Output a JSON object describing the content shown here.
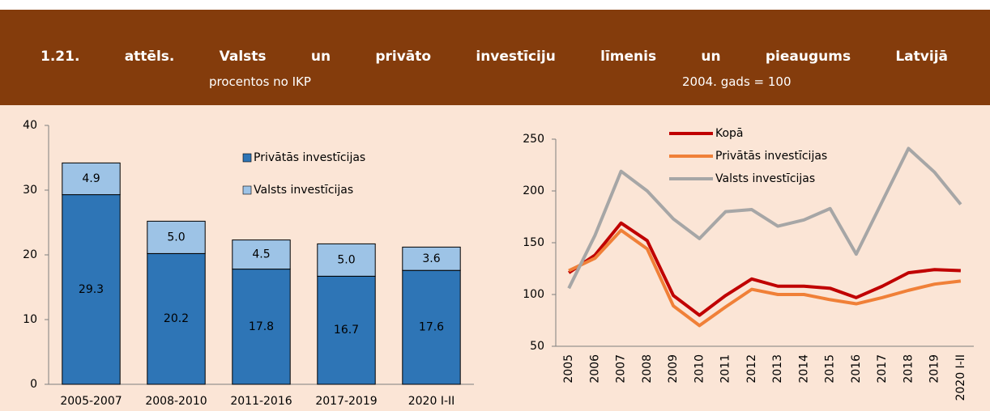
{
  "title": "1.21. attēls. Valsts un privāto investīciju līmenis un pieaugums Latvijā",
  "chart_data": [
    {
      "type": "bar",
      "stacked": true,
      "subtitle": "procentos no IKP",
      "categories": [
        "2005-2007",
        "2008-2010",
        "2011-2016",
        "2017-2019",
        "2020 I-II"
      ],
      "series": [
        {
          "name": "Privātās investīcijas",
          "color": "#2e75b6",
          "values": [
            29.3,
            20.2,
            17.8,
            16.7,
            17.6
          ],
          "value_labels": [
            "29.3",
            "20.2",
            "17.8",
            "16.7",
            "17.6"
          ]
        },
        {
          "name": "Valsts investīcijas",
          "color": "#9dc3e6",
          "values": [
            4.9,
            5.0,
            4.5,
            5.0,
            3.6
          ],
          "value_labels": [
            "4.9",
            "5.0",
            "4.5",
            "5.0",
            "3.6"
          ]
        }
      ],
      "ylim": [
        0,
        40
      ],
      "yticks": [
        0,
        10,
        20,
        30,
        40
      ]
    },
    {
      "type": "line",
      "subtitle": "2004. gads = 100",
      "categories": [
        "2005",
        "2006",
        "2007",
        "2008",
        "2009",
        "2010",
        "2011",
        "2012",
        "2013",
        "2014",
        "2015",
        "2016",
        "2017",
        "2018",
        "2019",
        "2020 I-II"
      ],
      "series": [
        {
          "name": "Kopā",
          "color": "#c00000",
          "values": [
            121,
            138,
            169,
            152,
            99,
            80,
            99,
            115,
            108,
            108,
            106,
            97,
            108,
            121,
            124,
            123
          ]
        },
        {
          "name": "Privātās investīcijas",
          "color": "#f08038",
          "values": [
            123,
            135,
            162,
            144,
            89,
            70,
            88,
            105,
            100,
            100,
            95,
            91,
            97,
            104,
            110,
            113
          ]
        },
        {
          "name": "Valsts investīcijas",
          "color": "#a6a6a6",
          "values": [
            106,
            157,
            219,
            200,
            173,
            154,
            180,
            182,
            166,
            172,
            183,
            139,
            190,
            241,
            218,
            187
          ]
        }
      ],
      "ylim": [
        50,
        250
      ],
      "yticks": [
        50,
        100,
        150,
        200,
        250
      ]
    }
  ]
}
